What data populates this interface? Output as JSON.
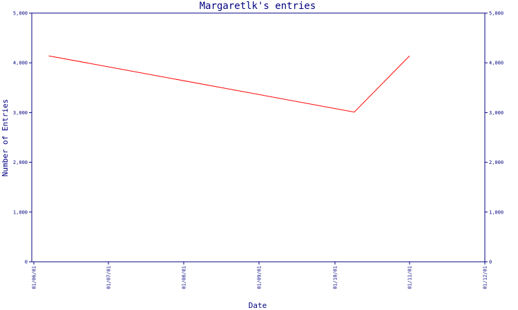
{
  "chart_data": {
    "type": "line",
    "title": "Margaretlk's entries",
    "xlabel": "Date",
    "ylabel": "Number of Entries",
    "x_ticks": [
      "01/06/01",
      "01/07/01",
      "01/08/01",
      "01/09/01",
      "01/10/01",
      "01/11/01",
      "01/12/01"
    ],
    "y_ticks": [
      "0",
      "1,000",
      "2,000",
      "3,000",
      "4,000",
      "5,000"
    ],
    "ylim": [
      0,
      5000
    ],
    "grid": false,
    "series": [
      {
        "color": "#ff0000",
        "points": [
          {
            "x": "2001-06-07",
            "y": 4140
          },
          {
            "x": "2001-10-09",
            "y": 3010
          },
          {
            "x": "2001-11-01",
            "y": 4140
          }
        ]
      }
    ],
    "colors": {
      "axis": "#000080",
      "line": "#ff0000",
      "background": "#ffffff"
    }
  }
}
